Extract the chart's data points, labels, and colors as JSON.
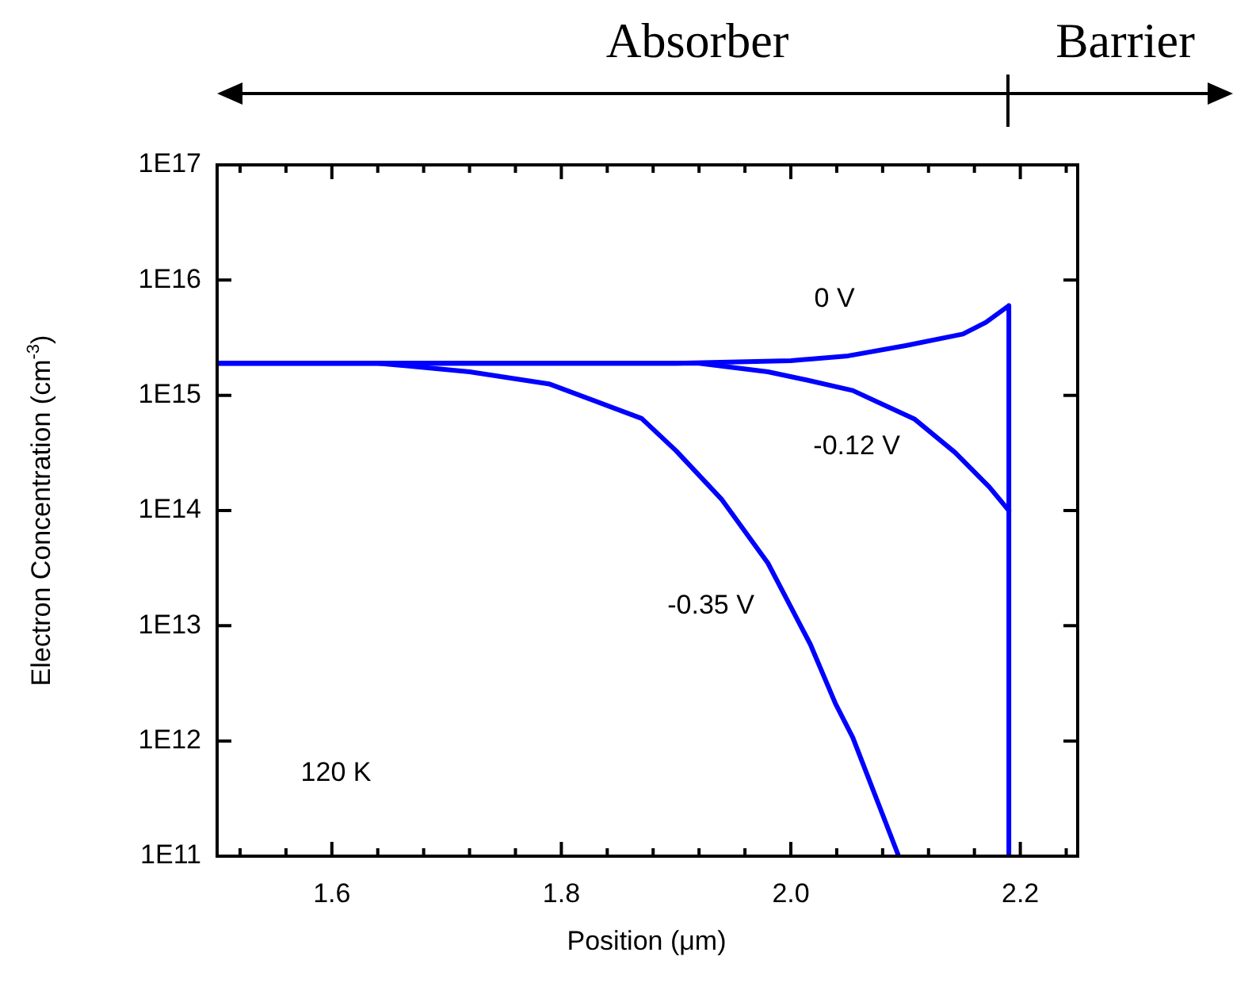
{
  "chart_data": {
    "type": "line",
    "xlabel": "Position (μm)",
    "ylabel": "Electron Concentration (cm$^{-3}$)",
    "log": "y",
    "grid": false,
    "legend": false,
    "marker": "none",
    "line_style": "solid",
    "xlim": [
      1.5,
      2.25
    ],
    "xticks": [
      {
        "value": 1.52,
        "label": null
      },
      {
        "value": 1.56,
        "label": null
      },
      1.6,
      {
        "value": 1.64,
        "label": null
      },
      {
        "value": 1.68,
        "label": null
      },
      {
        "value": 1.72,
        "label": null
      },
      {
        "value": 1.76,
        "label": null
      },
      1.8,
      {
        "value": 1.84,
        "label": null
      },
      {
        "value": 1.88,
        "label": null
      },
      {
        "value": 1.92,
        "label": null
      },
      {
        "value": 1.96,
        "label": null
      },
      {
        "value": 2.0,
        "label": "2.0"
      },
      {
        "value": 2.04,
        "label": null
      },
      {
        "value": 2.08,
        "label": null
      },
      {
        "value": 2.12,
        "label": null
      },
      {
        "value": 2.16,
        "label": null
      },
      2.2,
      {
        "value": 2.24,
        "label": null
      }
    ],
    "ylim": [
      100000000000.0,
      1e+17
    ],
    "yticks": [
      {
        "value": 100000000000.0,
        "label": "1E11"
      },
      {
        "value": 1000000000000.0,
        "label": "1E12"
      },
      {
        "value": 10000000000000.0,
        "label": "1E13"
      },
      {
        "value": 100000000000000.0,
        "label": "1E14"
      },
      {
        "value": 1000000000000000.0,
        "label": "1E15"
      },
      {
        "value": 1e+16,
        "label": "1E16"
      },
      {
        "value": 1e+17,
        "label": "1E17"
      }
    ],
    "series": [
      {
        "name": "0 V",
        "color": "#0000ff",
        "x": [
          1.5,
          1.9,
          2.0,
          2.05,
          2.1,
          2.15,
          2.17,
          2.19,
          2.19
        ],
        "values": [
          1900000000000000.0,
          1900000000000000.0,
          2000000000000000.0,
          2200000000000000.0,
          2700000000000000.0,
          3400000000000000.0,
          4300000000000000.0,
          6000000000000000.0,
          100000000000.0
        ]
      },
      {
        "name": "-0.12 V",
        "color": "#0000ff",
        "x": [
          1.5,
          1.92,
          1.98,
          2.015,
          2.054,
          2.108,
          2.143,
          2.173,
          2.19
        ],
        "values": [
          1900000000000000.0,
          1900000000000000.0,
          1600000000000000.0,
          1350000000000000.0,
          1100000000000000.0,
          620000000000000.0,
          320000000000000.0,
          160000000000000.0,
          100000000000000.0
        ]
      },
      {
        "name": "-0.35 V",
        "color": "#0000ff",
        "x": [
          1.5,
          1.64,
          1.72,
          1.79,
          1.87,
          1.9,
          1.94,
          1.98,
          2.017,
          2.039,
          2.054,
          2.094
        ],
        "values": [
          1900000000000000.0,
          1900000000000000.0,
          1600000000000000.0,
          1250000000000000.0,
          630000000000000.0,
          330000000000000.0,
          124000000000000.0,
          35000000000000.0,
          6900000000000.0,
          2100000000000.0,
          1070000000000.0,
          100000000000.0
        ]
      }
    ],
    "annotations": [
      "120 K",
      "Absorber",
      "Barrier"
    ]
  }
}
